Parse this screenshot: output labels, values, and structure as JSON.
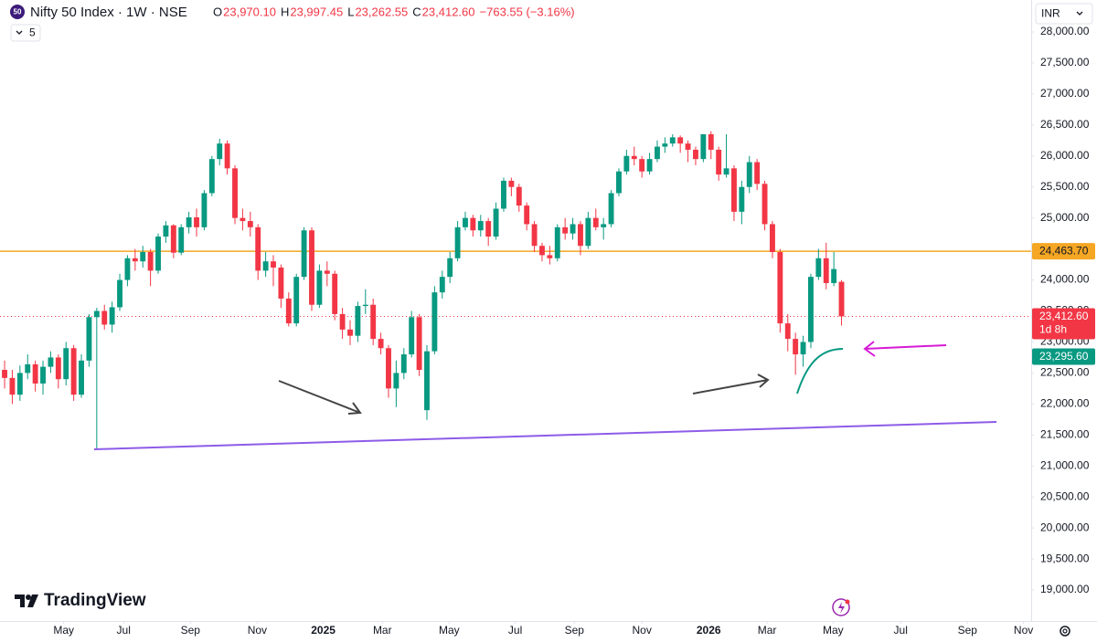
{
  "header": {
    "badge": "50",
    "symbol": "Nifty 50 Index · 1W · NSE",
    "fields": [
      {
        "key": "O",
        "value": "23,970.10"
      },
      {
        "key": "H",
        "value": "23,997.45"
      },
      {
        "key": "L",
        "value": "23,262.55"
      },
      {
        "key": "C",
        "value": "23,412.60"
      }
    ],
    "change": "−763.55 (−3.16%)",
    "indicator_count": "5",
    "currency": "INR"
  },
  "brand": "TradingView",
  "chart_data": {
    "type": "candlestick",
    "up_color": "#089981",
    "down_color": "#f23645",
    "grid": false,
    "x": [
      0,
      1,
      2,
      3,
      4,
      5,
      6,
      7,
      8,
      9,
      10,
      11,
      12,
      13,
      14,
      15,
      16,
      17,
      18,
      19,
      20,
      21,
      22,
      23,
      24,
      25,
      26,
      27,
      28,
      29,
      30,
      31,
      32,
      33,
      34,
      35,
      36,
      37,
      38,
      39,
      40,
      41,
      42,
      43,
      44,
      45,
      46,
      47,
      48,
      49,
      50,
      51,
      52,
      53,
      54,
      55,
      56,
      57,
      58,
      59,
      60,
      61,
      62,
      63,
      64,
      65,
      66,
      67,
      68,
      69,
      70,
      71,
      72,
      73,
      74,
      75,
      76,
      77,
      78,
      79,
      80,
      81,
      82,
      83,
      84,
      85,
      86,
      87,
      88,
      89,
      90,
      91,
      92,
      93,
      94,
      95,
      96,
      97,
      98,
      99,
      100,
      101,
      102,
      103,
      104,
      105,
      106,
      107,
      108,
      109
    ],
    "series": [
      {
        "name": "Nifty 50 Index",
        "ohlc": [
          [
            22550,
            22700,
            22250,
            22420
          ],
          [
            22420,
            22550,
            22000,
            22150
          ],
          [
            22150,
            22620,
            22050,
            22500
          ],
          [
            22500,
            22800,
            22400,
            22640
          ],
          [
            22640,
            22700,
            22200,
            22330
          ],
          [
            22330,
            22700,
            22150,
            22600
          ],
          [
            22600,
            22850,
            22500,
            22750
          ],
          [
            22750,
            22800,
            22250,
            22400
          ],
          [
            22400,
            23000,
            22300,
            22900
          ],
          [
            22900,
            22950,
            22050,
            22150
          ],
          [
            22150,
            22800,
            22100,
            22700
          ],
          [
            22700,
            23450,
            22600,
            23400
          ],
          [
            23400,
            23550,
            21280,
            23500
          ],
          [
            23500,
            23600,
            23200,
            23280
          ],
          [
            23280,
            23650,
            23150,
            23560
          ],
          [
            23560,
            24100,
            23500,
            24000
          ],
          [
            24000,
            24400,
            23900,
            24350
          ],
          [
            24350,
            24500,
            24150,
            24300
          ],
          [
            24300,
            24550,
            24200,
            24450
          ],
          [
            24450,
            24500,
            23900,
            24150
          ],
          [
            24150,
            24750,
            24100,
            24700
          ],
          [
            24700,
            24950,
            24600,
            24880
          ],
          [
            24880,
            24900,
            24350,
            24440
          ],
          [
            24440,
            24900,
            24400,
            24850
          ],
          [
            24850,
            25100,
            24750,
            25010
          ],
          [
            25010,
            25150,
            24700,
            24850
          ],
          [
            24850,
            25450,
            24800,
            25400
          ],
          [
            25400,
            26000,
            25350,
            25950
          ],
          [
            25950,
            26277,
            25850,
            26200
          ],
          [
            26200,
            26250,
            25700,
            25800
          ],
          [
            25800,
            25850,
            24900,
            25000
          ],
          [
            25000,
            25150,
            24800,
            24950
          ],
          [
            24950,
            25100,
            24700,
            24850
          ],
          [
            24850,
            24900,
            24000,
            24150
          ],
          [
            24150,
            24450,
            24050,
            24300
          ],
          [
            24300,
            24400,
            23900,
            24200
          ],
          [
            24200,
            24250,
            23550,
            23700
          ],
          [
            23700,
            23800,
            23250,
            23300
          ],
          [
            23300,
            24100,
            23250,
            24050
          ],
          [
            24050,
            24850,
            24000,
            24800
          ],
          [
            24800,
            24850,
            23500,
            23600
          ],
          [
            23600,
            24250,
            23550,
            24150
          ],
          [
            24150,
            24300,
            23900,
            24100
          ],
          [
            24100,
            24150,
            23350,
            23450
          ],
          [
            23450,
            23550,
            23050,
            23200
          ],
          [
            23200,
            23350,
            22950,
            23100
          ],
          [
            23100,
            23650,
            23000,
            23580
          ],
          [
            23580,
            23850,
            23450,
            23600
          ],
          [
            23600,
            23700,
            22950,
            23050
          ],
          [
            23050,
            23150,
            22800,
            22900
          ],
          [
            22900,
            22950,
            22100,
            22250
          ],
          [
            22250,
            22700,
            21950,
            22500
          ],
          [
            22500,
            22900,
            22400,
            22800
          ],
          [
            22800,
            23500,
            22750,
            23400
          ],
          [
            23400,
            23450,
            22450,
            22550
          ],
          [
            21900,
            22950,
            21743,
            22850
          ],
          [
            22850,
            23900,
            22800,
            23800
          ],
          [
            23800,
            24150,
            23700,
            24050
          ],
          [
            24050,
            24450,
            23950,
            24350
          ],
          [
            24350,
            24950,
            24300,
            24850
          ],
          [
            24850,
            25100,
            24800,
            25000
          ],
          [
            25000,
            25050,
            24700,
            24800
          ],
          [
            24800,
            25050,
            24700,
            24950
          ],
          [
            24950,
            25000,
            24550,
            24700
          ],
          [
            24700,
            25250,
            24650,
            25150
          ],
          [
            25150,
            25650,
            25100,
            25600
          ],
          [
            25600,
            25650,
            25350,
            25500
          ],
          [
            25500,
            25550,
            25100,
            25200
          ],
          [
            25200,
            25250,
            24800,
            24900
          ],
          [
            24900,
            24950,
            24450,
            24550
          ],
          [
            24550,
            24600,
            24300,
            24400
          ],
          [
            24400,
            24550,
            24250,
            24350
          ],
          [
            24350,
            24900,
            24300,
            24850
          ],
          [
            24850,
            25000,
            24650,
            24750
          ],
          [
            24750,
            25000,
            24650,
            24900
          ],
          [
            24900,
            24950,
            24400,
            24550
          ],
          [
            24550,
            25100,
            24500,
            25000
          ],
          [
            25000,
            25150,
            24800,
            24850
          ],
          [
            24850,
            25000,
            24650,
            24900
          ],
          [
            24900,
            25450,
            24850,
            25400
          ],
          [
            25400,
            25800,
            25350,
            25750
          ],
          [
            25750,
            26100,
            25700,
            26000
          ],
          [
            26000,
            26150,
            25850,
            25950
          ],
          [
            25950,
            26000,
            25650,
            25750
          ],
          [
            25750,
            26050,
            25700,
            25950
          ],
          [
            25950,
            26250,
            25900,
            26150
          ],
          [
            26150,
            26300,
            26050,
            26200
          ],
          [
            26200,
            26350,
            26150,
            26300
          ],
          [
            26300,
            26330,
            26050,
            26200
          ],
          [
            26200,
            26250,
            25900,
            26100
          ],
          [
            26100,
            26150,
            25850,
            25950
          ],
          [
            25950,
            26350,
            25900,
            26350
          ],
          [
            26350,
            26400,
            25950,
            26100
          ],
          [
            26100,
            26150,
            25600,
            25700
          ],
          [
            25700,
            26350,
            25650,
            25800
          ],
          [
            25800,
            25850,
            24950,
            25100
          ],
          [
            25100,
            25600,
            24900,
            25500
          ],
          [
            25500,
            26000,
            25400,
            25900
          ],
          [
            25900,
            25950,
            25450,
            25550
          ],
          [
            25550,
            25600,
            24800,
            24900
          ],
          [
            24900,
            24950,
            24350,
            24450
          ],
          [
            24450,
            24500,
            23150,
            23300
          ],
          [
            23300,
            23450,
            22850,
            23050
          ],
          [
            23050,
            23150,
            22470,
            22800
          ],
          [
            22800,
            23100,
            22600,
            23000
          ],
          [
            23000,
            24100,
            22900,
            24050
          ],
          [
            24050,
            24500,
            24000,
            24350
          ],
          [
            24350,
            24600,
            23850,
            23950
          ],
          [
            23950,
            24450,
            23900,
            24176.15
          ],
          [
            23970.1,
            23997.45,
            23262.55,
            23412.6
          ]
        ]
      }
    ],
    "xlim": [
      -0.6,
      133.7
    ],
    "xticks": [
      {
        "value": 7.7,
        "label": "May"
      },
      {
        "value": 15.5,
        "label": "Jul"
      },
      {
        "value": 24.2,
        "label": "Sep"
      },
      {
        "value": 32.9,
        "label": "Nov"
      },
      {
        "value": 41.5,
        "label": "2025"
      },
      {
        "value": 49.2,
        "label": "Mar"
      },
      {
        "value": 57.9,
        "label": "May"
      },
      {
        "value": 66.5,
        "label": "Jul"
      },
      {
        "value": 74.2,
        "label": "Sep"
      },
      {
        "value": 83,
        "label": "Nov"
      },
      {
        "value": 91.7,
        "label": "2026"
      },
      {
        "value": 99.3,
        "label": "Mar"
      },
      {
        "value": 107.9,
        "label": "May"
      },
      {
        "value": 116.7,
        "label": "Jul"
      },
      {
        "value": 125.4,
        "label": "Sep"
      },
      {
        "value": 132.7,
        "label": "Nov"
      }
    ],
    "ylim": [
      18500,
      28515
    ],
    "yticks": [
      {
        "value": 19000,
        "label": "19,000.00"
      },
      {
        "value": 19500,
        "label": "19,500.00"
      },
      {
        "value": 20000,
        "label": "20,000.00"
      },
      {
        "value": 20500,
        "label": "20,500.00"
      },
      {
        "value": 21000,
        "label": "21,000.00"
      },
      {
        "value": 21500,
        "label": "21,500.00"
      },
      {
        "value": 22000,
        "label": "22,000.00"
      },
      {
        "value": 22500,
        "label": "22,500.00"
      },
      {
        "value": 23000,
        "label": "23,000.00"
      },
      {
        "value": 23500,
        "label": "23,500.00"
      },
      {
        "value": 24000,
        "label": "24,000.00"
      },
      {
        "value": 24500,
        "label": "24,500.00"
      },
      {
        "value": 25000,
        "label": "25,000.00"
      },
      {
        "value": 25500,
        "label": "25,500.00"
      },
      {
        "value": 26000,
        "label": "26,000.00"
      },
      {
        "value": 26500,
        "label": "26,500.00"
      },
      {
        "value": 27000,
        "label": "27,000.00"
      },
      {
        "value": 27500,
        "label": "27,500.00"
      },
      {
        "value": 28000,
        "label": "28,000.00"
      }
    ],
    "hline": {
      "value": 24463.7,
      "label": "24,463.70",
      "color": "#f5a623"
    },
    "last_price": {
      "value": 23412.6,
      "label": "23,412.60",
      "countdown": "1d 8h",
      "color": "#f23645"
    },
    "curve_price": {
      "value": 23295.6,
      "label": "23,295.60",
      "color": "#089981"
    }
  }
}
